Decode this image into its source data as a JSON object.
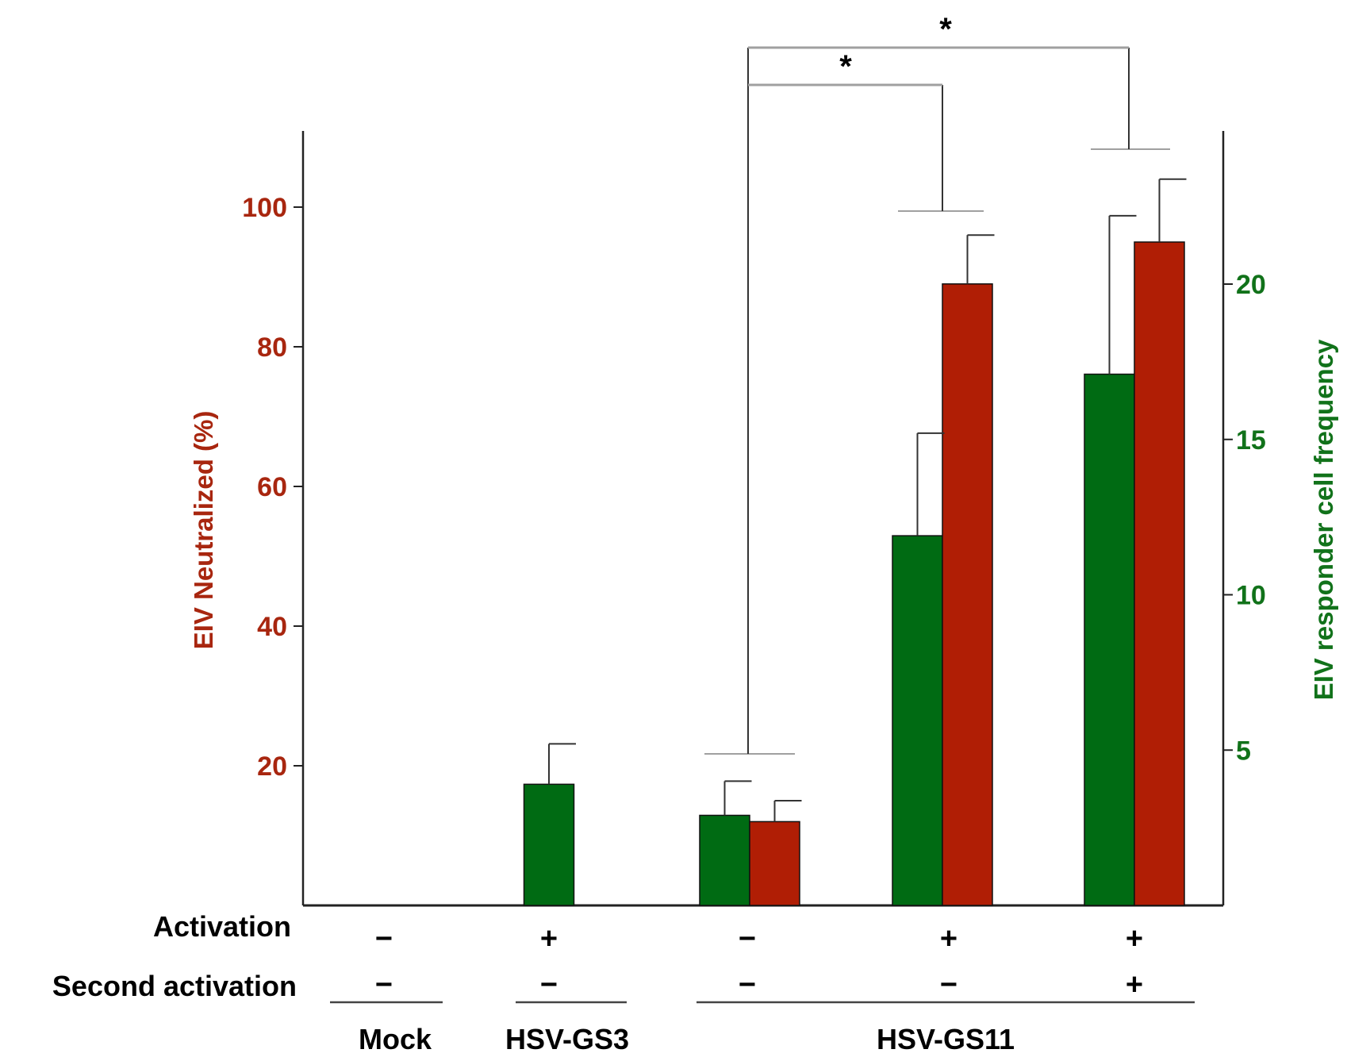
{
  "chart_data": {
    "type": "bar",
    "title": "",
    "left_axis": {
      "label": "EIV Neutralized (%)",
      "color": "#a8260f",
      "range": [
        0,
        110
      ],
      "ticks": [
        20,
        40,
        60,
        80,
        100
      ],
      "tick_labels": [
        "20",
        "40",
        "60",
        "80",
        "100"
      ]
    },
    "right_axis": {
      "label": "EIV responder cell frequency",
      "color": "#11721a",
      "range": [
        0,
        25
      ],
      "ticks": [
        5,
        10,
        15,
        20
      ],
      "tick_labels": [
        "5",
        "10",
        "15",
        "20"
      ]
    },
    "groups": [
      {
        "name": "Mock",
        "activation": "−",
        "second_activation": "−"
      },
      {
        "name": "HSV-GS3",
        "activation": "+",
        "second_activation": "−"
      },
      {
        "name": "HSV-GS11",
        "activation": "−",
        "second_activation": "−"
      },
      {
        "name": "HSV-GS11",
        "activation": "+",
        "second_activation": "−"
      },
      {
        "name": "HSV-GS11",
        "activation": "+",
        "second_activation": "+"
      }
    ],
    "series": [
      {
        "name": "EIV responder cell frequency",
        "axis": "right",
        "color": "#006b13",
        "values": [
          null,
          3.9,
          2.9,
          11.9,
          17.1
        ],
        "errors": [
          null,
          1.3,
          1.1,
          3.3,
          5.1
        ]
      },
      {
        "name": "EIV Neutralized (%)",
        "axis": "left",
        "color": "#b01e05",
        "values": [
          null,
          null,
          12,
          89,
          95
        ],
        "errors": [
          null,
          null,
          3,
          7,
          9
        ]
      }
    ],
    "row_labels": {
      "activation": "Activation",
      "second_activation": "Second activation"
    },
    "group_labels": [
      "Mock",
      "HSV-GS3",
      "HSV-GS11"
    ],
    "significance": [
      {
        "from_bar": "HSV-GS11 −/−",
        "to_bar": "HSV-GS11 +/−",
        "label": "*"
      },
      {
        "from_bar": "HSV-GS11 −/−",
        "to_bar": "HSV-GS11 +/+",
        "label": "*"
      }
    ]
  }
}
